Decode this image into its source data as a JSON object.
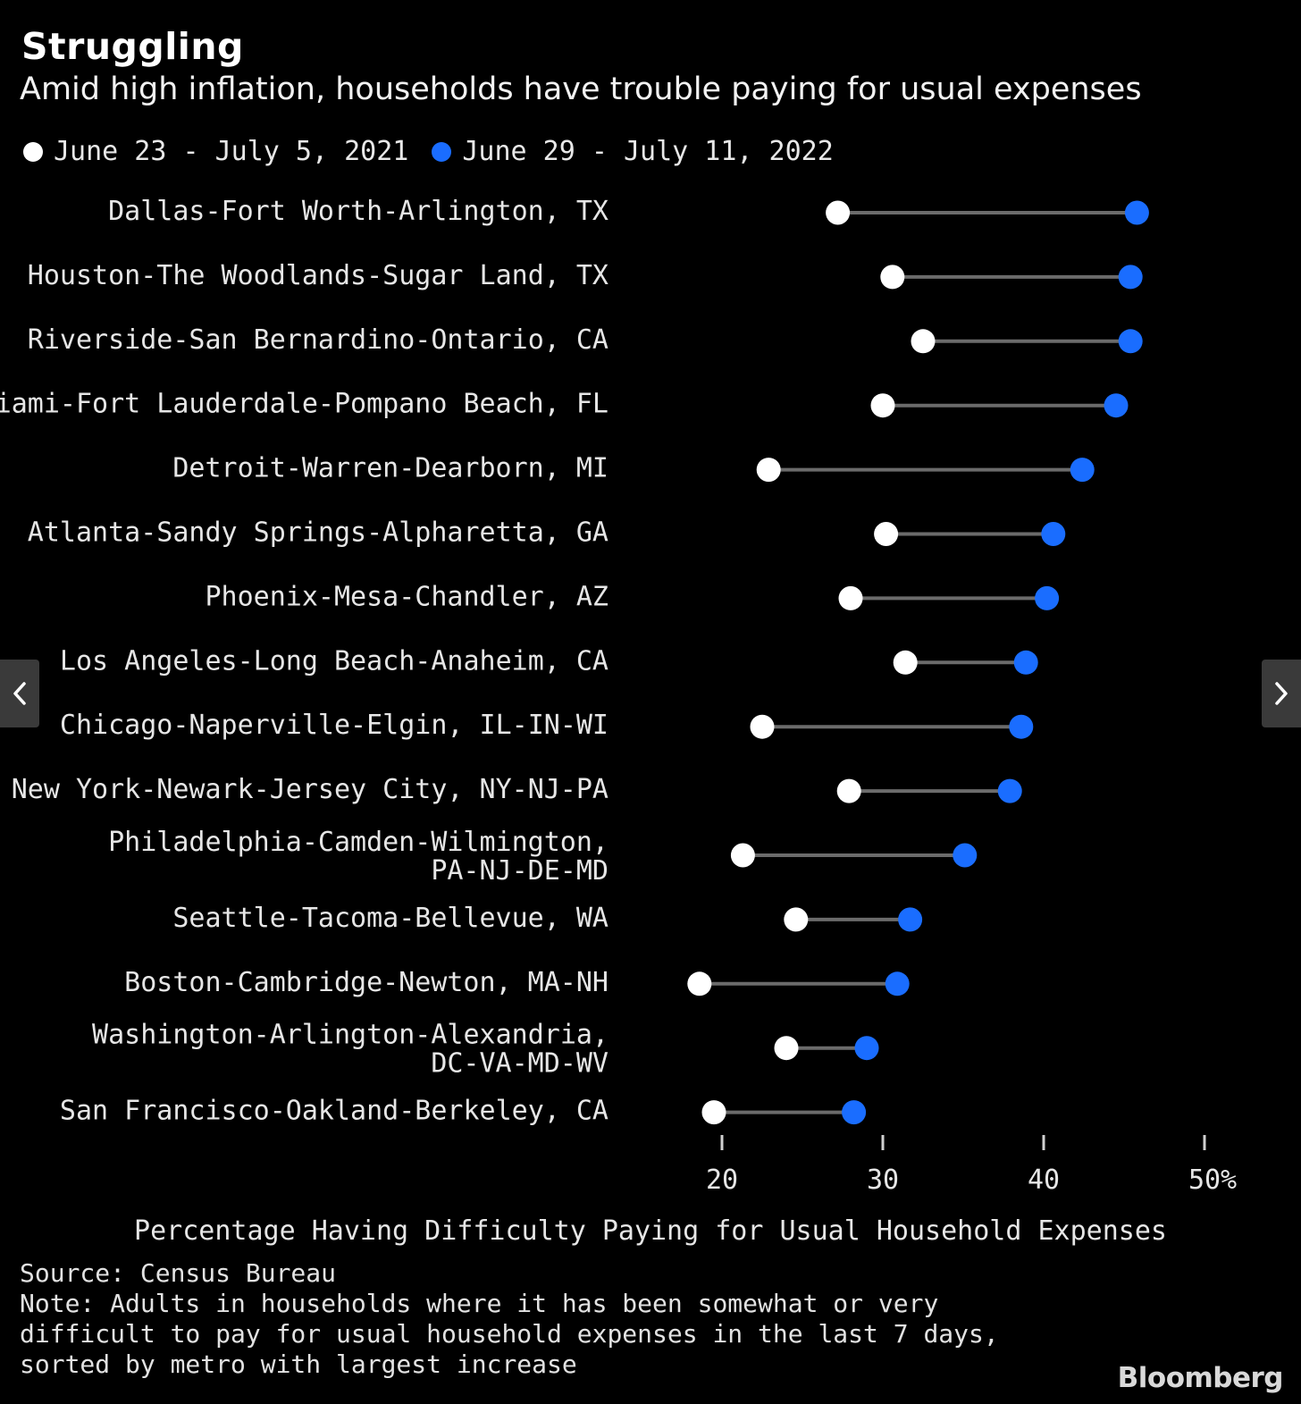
{
  "header": {
    "title": "Struggling",
    "subtitle": "Amid high inflation, households have trouble paying for usual expenses"
  },
  "legend": [
    {
      "label": "June 23 - July 5, 2021",
      "color": "#ffffff"
    },
    {
      "label": "June 29 - July 11, 2022",
      "color": "#1a6dff"
    }
  ],
  "chart_data": {
    "type": "dumbbell",
    "categories": [
      [
        "Dallas-Fort Worth-Arlington, TX"
      ],
      [
        "Houston-The Woodlands-Sugar Land, TX"
      ],
      [
        "Riverside-San Bernardino-Ontario, CA"
      ],
      [
        "Miami-Fort Lauderdale-Pompano Beach, FL"
      ],
      [
        "Detroit-Warren-Dearborn, MI"
      ],
      [
        "Atlanta-Sandy Springs-Alpharetta, GA"
      ],
      [
        "Phoenix-Mesa-Chandler, AZ"
      ],
      [
        "Los Angeles-Long Beach-Anaheim, CA"
      ],
      [
        "Chicago-Naperville-Elgin, IL-IN-WI"
      ],
      [
        "New York-Newark-Jersey City, NY-NJ-PA"
      ],
      [
        "Philadelphia-Camden-Wilmington,",
        "PA-NJ-DE-MD"
      ],
      [
        "Seattle-Tacoma-Bellevue, WA"
      ],
      [
        "Boston-Cambridge-Newton, MA-NH"
      ],
      [
        "Washington-Arlington-Alexandria,",
        "DC-VA-MD-WV"
      ],
      [
        "San Francisco-Oakland-Berkeley, CA"
      ]
    ],
    "series": [
      {
        "name": "June 23 - July 5, 2021",
        "color": "#ffffff",
        "values": [
          27.2,
          30.6,
          32.5,
          30.0,
          22.9,
          30.2,
          28.0,
          31.4,
          22.5,
          27.9,
          21.3,
          24.6,
          18.6,
          24.0,
          19.5
        ]
      },
      {
        "name": "June 29 - July 11, 2022",
        "color": "#1a6dff",
        "values": [
          45.8,
          45.4,
          45.4,
          44.5,
          42.4,
          40.6,
          40.2,
          38.9,
          38.6,
          37.9,
          35.1,
          31.7,
          30.9,
          29.0,
          28.2
        ]
      }
    ],
    "xlim": [
      20,
      50
    ],
    "x_ticks": [
      20,
      30,
      40,
      50
    ],
    "x_tick_labels": [
      "20",
      "30",
      "40",
      "50%"
    ],
    "xlabel": "Percentage Having Difficulty Paying for Usual Household Expenses",
    "grid": false,
    "legend_position": "top-left",
    "connector_color": "#6b6b6b"
  },
  "footer": {
    "source": "Source: Census Bureau",
    "note": "Note: Adults in households where it has been somewhat or very difficult to pay for usual household expenses in the last 7 days, sorted by metro with largest increase"
  },
  "branding": {
    "name": "Bloomberg"
  },
  "navigation": {
    "prev_icon": "chevron-left-icon",
    "next_icon": "chevron-right-icon"
  }
}
